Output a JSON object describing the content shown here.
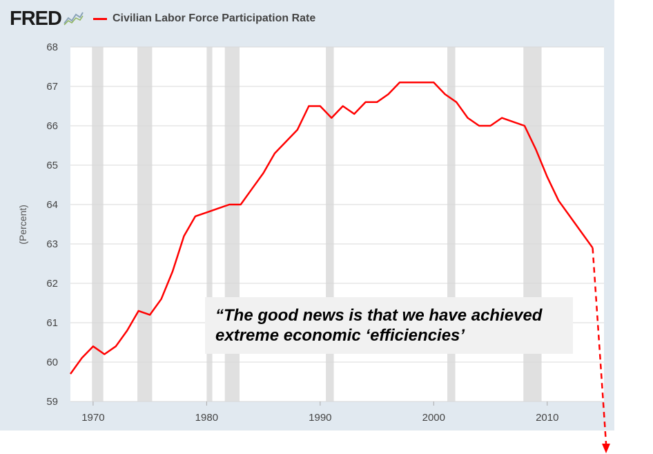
{
  "header": {
    "logo_text": "FRED",
    "logo_icon": "line-chart-icon",
    "series_label": "Civilian Labor Force Participation Rate"
  },
  "annotation": {
    "quote": "“The good news is that we have achieved\nextreme economic ‘efficiencies’"
  },
  "colors": {
    "series": "#ff0000",
    "recession": "#e0e0e0",
    "panel_bg": "#e1e9f0",
    "plot_bg": "#ffffff",
    "quote_bg": "#f1f1f1"
  },
  "chart_data": {
    "type": "line",
    "title": "Civilian Labor Force Participation Rate",
    "ylabel": "(Percent)",
    "xlim": [
      1968,
      2015
    ],
    "ylim": [
      59,
      68
    ],
    "x_ticks": [
      1970,
      1980,
      1990,
      2000,
      2010
    ],
    "y_ticks": [
      59,
      60,
      61,
      62,
      63,
      64,
      65,
      66,
      67,
      68
    ],
    "grid": "horizontal",
    "legend": "top-left",
    "recessions": [
      [
        1969.9,
        1970.9
      ],
      [
        1973.9,
        1975.2
      ],
      [
        1980.0,
        1980.5
      ],
      [
        1981.6,
        1982.9
      ],
      [
        1990.5,
        1991.2
      ],
      [
        2001.2,
        2001.9
      ],
      [
        2007.9,
        2009.5
      ]
    ],
    "series": [
      {
        "name": "Civilian Labor Force Participation Rate",
        "x": [
          1968,
          1969,
          1970,
          1971,
          1972,
          1973,
          1974,
          1975,
          1976,
          1977,
          1978,
          1979,
          1980,
          1981,
          1982,
          1983,
          1984,
          1985,
          1986,
          1987,
          1988,
          1989,
          1990,
          1991,
          1992,
          1993,
          1994,
          1995,
          1996,
          1997,
          1998,
          1999,
          2000,
          2001,
          2002,
          2003,
          2004,
          2005,
          2006,
          2007,
          2008,
          2009,
          2010,
          2011,
          2012,
          2013,
          2014
        ],
        "values": [
          59.7,
          60.1,
          60.4,
          60.2,
          60.4,
          60.8,
          61.3,
          61.2,
          61.6,
          62.3,
          63.2,
          63.7,
          63.8,
          63.9,
          64.0,
          64.0,
          64.4,
          64.8,
          65.3,
          65.6,
          65.9,
          66.5,
          66.5,
          66.2,
          66.5,
          66.3,
          66.6,
          66.6,
          66.8,
          67.1,
          67.1,
          67.1,
          67.1,
          66.8,
          66.6,
          66.2,
          66.0,
          66.0,
          66.2,
          66.1,
          66.0,
          65.4,
          64.7,
          64.1,
          63.7,
          63.3,
          62.9
        ]
      }
    ],
    "projection": {
      "x": [
        2014,
        2015
      ],
      "values": [
        62.9,
        58.0
      ],
      "style": "dashed-arrow"
    }
  }
}
